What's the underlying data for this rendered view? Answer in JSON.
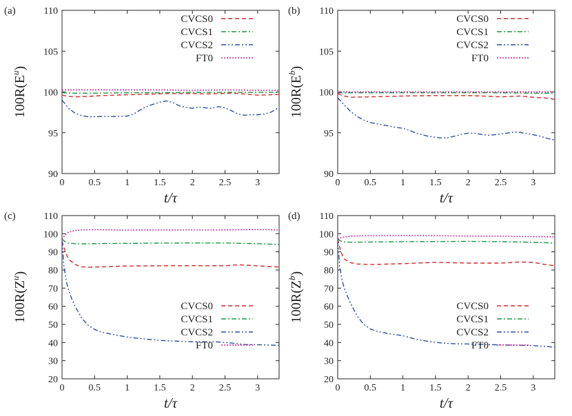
{
  "figure_title": "",
  "chart_data": [
    {
      "type": "line",
      "panel_label": "(a)",
      "ylabel_base": "100R(E",
      "ylabel_sup": "u",
      "ylabel_close": ")",
      "xlabel": "t/τ",
      "xlim": [
        0,
        3.33
      ],
      "ylim": [
        90,
        110
      ],
      "xticks": [
        0,
        0.5,
        1,
        1.5,
        2,
        2.5,
        3
      ],
      "xtick_labels": [
        "0",
        "0.5",
        "1",
        "1.5",
        "2",
        "2.5",
        "3"
      ],
      "yticks": [
        90,
        95,
        100,
        105,
        110
      ],
      "ytick_labels": [
        "90",
        "95",
        "100",
        "105",
        "110"
      ],
      "legend_position": "top-right",
      "series": [
        {
          "name": "CVCS0",
          "color": "#d62728",
          "dash": "6,4",
          "x": [
            0,
            0.1,
            0.2,
            0.4,
            0.6,
            0.8,
            1,
            1.2,
            1.4,
            1.6,
            1.8,
            2,
            2.2,
            2.4,
            2.6,
            2.8,
            3,
            3.2,
            3.33
          ],
          "values": [
            99.6,
            99.45,
            99.4,
            99.45,
            99.55,
            99.6,
            99.65,
            99.7,
            99.75,
            99.8,
            99.8,
            99.8,
            99.75,
            99.8,
            99.85,
            99.75,
            99.6,
            99.65,
            99.7
          ]
        },
        {
          "name": "CVCS1",
          "color": "#1a9641",
          "dash": "7,3,2,3",
          "x": [
            0,
            0.2,
            0.5,
            1,
            1.5,
            2,
            2.5,
            3,
            3.33
          ],
          "values": [
            99.9,
            99.85,
            99.85,
            99.9,
            99.9,
            99.95,
            99.95,
            99.95,
            99.95
          ]
        },
        {
          "name": "CVCS2",
          "color": "#2c4fa3",
          "dash": "7,3,2,3,2,3",
          "x": [
            0,
            0.1,
            0.2,
            0.3,
            0.4,
            0.6,
            0.8,
            1,
            1.1,
            1.2,
            1.3,
            1.4,
            1.5,
            1.6,
            1.7,
            1.8,
            1.9,
            2,
            2.1,
            2.2,
            2.3,
            2.4,
            2.5,
            2.6,
            2.7,
            2.8,
            2.9,
            3,
            3.1,
            3.2,
            3.33
          ],
          "values": [
            99,
            98.0,
            97.4,
            97.1,
            96.95,
            97.0,
            97.0,
            97.05,
            97.3,
            97.8,
            98.2,
            98.5,
            98.75,
            98.9,
            98.7,
            98.3,
            98.1,
            98.0,
            98.15,
            98.05,
            98.0,
            98.2,
            98.05,
            97.7,
            97.3,
            97.15,
            97.2,
            97.2,
            97.3,
            97.5,
            98.1
          ]
        },
        {
          "name": "FT0",
          "color": "#c0229a",
          "dash": "2,2",
          "x": [
            0,
            0.5,
            1,
            1.5,
            2,
            2.5,
            3,
            3.33
          ],
          "values": [
            100.25,
            100.25,
            100.25,
            100.25,
            100.2,
            100.25,
            100.2,
            100.2
          ]
        }
      ]
    },
    {
      "type": "line",
      "panel_label": "(b)",
      "ylabel_base": "100R(E",
      "ylabel_sup": "b",
      "ylabel_close": ")",
      "xlabel": "t/τ",
      "xlim": [
        0,
        3.33
      ],
      "ylim": [
        90,
        110
      ],
      "xticks": [
        0,
        0.5,
        1,
        1.5,
        2,
        2.5,
        3
      ],
      "xtick_labels": [
        "0",
        "0.5",
        "1",
        "1.5",
        "2",
        "2.5",
        "3"
      ],
      "yticks": [
        90,
        95,
        100,
        105,
        110
      ],
      "ytick_labels": [
        "90",
        "95",
        "100",
        "105",
        "110"
      ],
      "legend_position": "top-right",
      "series": [
        {
          "name": "CVCS0",
          "color": "#d62728",
          "dash": "6,4",
          "x": [
            0,
            0.1,
            0.2,
            0.5,
            1,
            1.5,
            2,
            2.2,
            2.5,
            2.8,
            3,
            3.2,
            3.33
          ],
          "values": [
            99.8,
            99.5,
            99.35,
            99.4,
            99.5,
            99.55,
            99.55,
            99.5,
            99.4,
            99.5,
            99.35,
            99.25,
            99.1
          ]
        },
        {
          "name": "CVCS1",
          "color": "#1a9641",
          "dash": "7,3,2,3",
          "x": [
            0,
            0.5,
            1,
            1.5,
            2,
            2.5,
            3,
            3.33
          ],
          "values": [
            99.9,
            99.9,
            99.9,
            99.9,
            99.9,
            99.9,
            99.85,
            99.85
          ]
        },
        {
          "name": "CVCS2",
          "color": "#2c4fa3",
          "dash": "7,3,2,3,2,3",
          "x": [
            0,
            0.1,
            0.2,
            0.3,
            0.4,
            0.5,
            0.7,
            0.9,
            1,
            1.1,
            1.2,
            1.4,
            1.5,
            1.6,
            1.7,
            1.8,
            1.9,
            2,
            2.1,
            2.2,
            2.3,
            2.4,
            2.5,
            2.6,
            2.7,
            2.8,
            2.9,
            3,
            3.1,
            3.2,
            3.33
          ],
          "values": [
            99.3,
            98.4,
            97.6,
            97.0,
            96.55,
            96.25,
            95.95,
            95.65,
            95.55,
            95.3,
            94.95,
            94.55,
            94.45,
            94.35,
            94.4,
            94.6,
            94.8,
            94.95,
            94.95,
            94.8,
            94.7,
            94.75,
            94.85,
            94.95,
            95.1,
            95.05,
            94.9,
            94.75,
            94.6,
            94.35,
            94.1
          ]
        },
        {
          "name": "FT0",
          "color": "#c0229a",
          "dash": "2,2",
          "x": [
            0,
            0.5,
            1,
            1.5,
            2,
            2.5,
            3,
            3.33
          ],
          "values": [
            100.0,
            100.0,
            100.0,
            100.0,
            100.0,
            100.0,
            100.0,
            100.0
          ]
        }
      ]
    },
    {
      "type": "line",
      "panel_label": "(c)",
      "ylabel_base": "100R(Z",
      "ylabel_sup": "u",
      "ylabel_close": ")",
      "xlabel": "t/τ",
      "xlim": [
        0,
        3.33
      ],
      "ylim": [
        20,
        110
      ],
      "xticks": [
        0,
        0.5,
        1,
        1.5,
        2,
        2.5,
        3
      ],
      "xtick_labels": [
        "0",
        "0.5",
        "1",
        "1.5",
        "2",
        "2.5",
        "3"
      ],
      "yticks": [
        20,
        30,
        40,
        50,
        60,
        70,
        80,
        90,
        100,
        110
      ],
      "ytick_labels": [
        "20",
        "30",
        "40",
        "50",
        "60",
        "70",
        "80",
        "90",
        "100",
        "110"
      ],
      "legend_position": "center-right",
      "series": [
        {
          "name": "CVCS0",
          "color": "#d62728",
          "dash": "6,4",
          "x": [
            0,
            0.05,
            0.1,
            0.2,
            0.3,
            0.4,
            0.6,
            0.8,
            1,
            1.5,
            2,
            2.5,
            2.7,
            3,
            3.2,
            3.33
          ],
          "values": [
            96,
            90,
            86,
            83,
            81.8,
            81.5,
            81.7,
            82,
            82.2,
            82.3,
            82.4,
            82.3,
            82.9,
            82.3,
            81.9,
            81.6
          ]
        },
        {
          "name": "CVCS1",
          "color": "#1a9641",
          "dash": "7,3,2,3",
          "x": [
            0,
            0.05,
            0.1,
            0.2,
            0.3,
            0.5,
            1,
            1.5,
            2,
            2.5,
            3,
            3.33
          ],
          "values": [
            97,
            95.5,
            94.8,
            94.5,
            94.4,
            94.5,
            94.7,
            94.8,
            94.9,
            94.9,
            94.5,
            94.1
          ]
        },
        {
          "name": "CVCS2",
          "color": "#2c4fa3",
          "dash": "7,3,2,3,2,3",
          "x": [
            0,
            0.03,
            0.07,
            0.1,
            0.15,
            0.2,
            0.3,
            0.4,
            0.5,
            0.6,
            0.8,
            1,
            1.2,
            1.4,
            1.6,
            1.8,
            2,
            2.2,
            2.4,
            2.6,
            2.8,
            3,
            3.2,
            3.33
          ],
          "values": [
            96,
            82,
            73,
            69,
            64,
            60,
            53.5,
            49.5,
            47.2,
            45.8,
            44.3,
            43,
            42.2,
            41.5,
            41,
            40.7,
            40.4,
            40.4,
            40.3,
            39.7,
            38.9,
            38.8,
            38.6,
            38.4
          ]
        },
        {
          "name": "FT0",
          "color": "#c0229a",
          "dash": "2,2",
          "x": [
            0,
            0.05,
            0.1,
            0.2,
            0.3,
            0.5,
            1,
            1.5,
            2,
            2.5,
            3,
            3.33
          ],
          "values": [
            97,
            99.5,
            100.8,
            101.8,
            102.1,
            102.2,
            102,
            102.1,
            102.1,
            102.1,
            102.3,
            102.1
          ]
        }
      ]
    },
    {
      "type": "line",
      "panel_label": "(d)",
      "ylabel_base": "100R(Z",
      "ylabel_sup": "b",
      "ylabel_close": ")",
      "xlabel": "t/τ",
      "xlim": [
        0,
        3.33
      ],
      "ylim": [
        20,
        110
      ],
      "xticks": [
        0,
        0.5,
        1,
        1.5,
        2,
        2.5,
        3
      ],
      "xtick_labels": [
        "0",
        "0.5",
        "1",
        "1.5",
        "2",
        "2.5",
        "3"
      ],
      "yticks": [
        20,
        30,
        40,
        50,
        60,
        70,
        80,
        90,
        100,
        110
      ],
      "ytick_labels": [
        "20",
        "30",
        "40",
        "50",
        "60",
        "70",
        "80",
        "90",
        "100",
        "110"
      ],
      "legend_position": "center-right",
      "series": [
        {
          "name": "CVCS0",
          "color": "#d62728",
          "dash": "6,4",
          "x": [
            0,
            0.05,
            0.1,
            0.2,
            0.3,
            0.5,
            1,
            1.5,
            2,
            2.5,
            2.8,
            3,
            3.2,
            3.33
          ],
          "values": [
            97,
            90,
            86,
            84,
            83.3,
            83,
            83.5,
            84.2,
            83.8,
            83.8,
            84.4,
            84.2,
            82.9,
            82.4
          ]
        },
        {
          "name": "CVCS1",
          "color": "#1a9641",
          "dash": "7,3,2,3",
          "x": [
            0,
            0.05,
            0.1,
            0.2,
            0.5,
            1,
            1.5,
            2,
            2.5,
            3,
            3.33
          ],
          "values": [
            97,
            96,
            95.5,
            95.3,
            95.4,
            95.6,
            95.7,
            95.8,
            95.6,
            95.3,
            94.8
          ]
        },
        {
          "name": "CVCS2",
          "color": "#2c4fa3",
          "dash": "7,3,2,3,2,3",
          "x": [
            0,
            0.03,
            0.07,
            0.1,
            0.15,
            0.2,
            0.3,
            0.4,
            0.5,
            0.6,
            0.8,
            1,
            1.2,
            1.4,
            1.6,
            1.8,
            2,
            2.2,
            2.4,
            2.6,
            2.8,
            3,
            3.2,
            3.33
          ],
          "values": [
            96,
            82,
            74,
            70,
            65.5,
            61.5,
            54.5,
            50,
            47.5,
            46.2,
            44.8,
            43.8,
            41.8,
            40.6,
            39.7,
            39.3,
            39.2,
            39,
            38.8,
            38.6,
            38.5,
            38.3,
            37.8,
            37.4
          ]
        },
        {
          "name": "FT0",
          "color": "#c0229a",
          "dash": "2,2",
          "x": [
            0,
            0.05,
            0.1,
            0.2,
            0.3,
            0.5,
            1,
            1.5,
            2,
            2.5,
            3,
            3.33
          ],
          "values": [
            97,
            97.8,
            98.2,
            98.6,
            98.8,
            98.9,
            99.0,
            98.9,
            98.7,
            98.6,
            98.4,
            98.2
          ]
        }
      ]
    }
  ]
}
